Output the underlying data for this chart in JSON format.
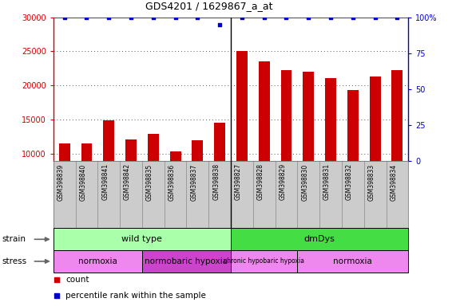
{
  "title": "GDS4201 / 1629867_a_at",
  "samples": [
    "GSM398839",
    "GSM398840",
    "GSM398841",
    "GSM398842",
    "GSM398835",
    "GSM398836",
    "GSM398837",
    "GSM398838",
    "GSM398827",
    "GSM398828",
    "GSM398829",
    "GSM398830",
    "GSM398831",
    "GSM398832",
    "GSM398833",
    "GSM398834"
  ],
  "counts": [
    11500,
    11600,
    14900,
    12100,
    12900,
    10400,
    12000,
    14600,
    25000,
    23600,
    22300,
    22000,
    21100,
    19400,
    21300,
    22300
  ],
  "percentile_ranks": [
    100,
    100,
    100,
    100,
    100,
    100,
    100,
    95,
    100,
    100,
    100,
    100,
    100,
    100,
    100,
    100
  ],
  "ylim_left": [
    9000,
    30000
  ],
  "ylim_right": [
    0,
    100
  ],
  "yticks_left": [
    10000,
    15000,
    20000,
    25000,
    30000
  ],
  "yticks_right": [
    0,
    25,
    50,
    75,
    100
  ],
  "bar_color": "#cc0000",
  "dot_color": "#0000cc",
  "bar_width": 0.5,
  "strain_groups": [
    {
      "label": "wild type",
      "start": 0,
      "end": 8,
      "color": "#aaffaa"
    },
    {
      "label": "dmDys",
      "start": 8,
      "end": 16,
      "color": "#44dd44"
    }
  ],
  "stress_groups": [
    {
      "label": "normoxia",
      "start": 0,
      "end": 4,
      "color": "#ee88ee"
    },
    {
      "label": "normobaric hypoxia",
      "start": 4,
      "end": 8,
      "color": "#cc44cc"
    },
    {
      "label": "chronic hypobaric hypoxia",
      "start": 8,
      "end": 11,
      "color": "#ee88ee"
    },
    {
      "label": "normoxia",
      "start": 11,
      "end": 16,
      "color": "#ee88ee"
    }
  ],
  "left_axis_color": "#cc0000",
  "right_axis_color": "#0000cc",
  "grid_color": "#555555",
  "tick_area_bg": "#cccccc",
  "strain_separator": 7.5,
  "stress_separators": [
    3.5,
    7.5,
    10.5
  ]
}
